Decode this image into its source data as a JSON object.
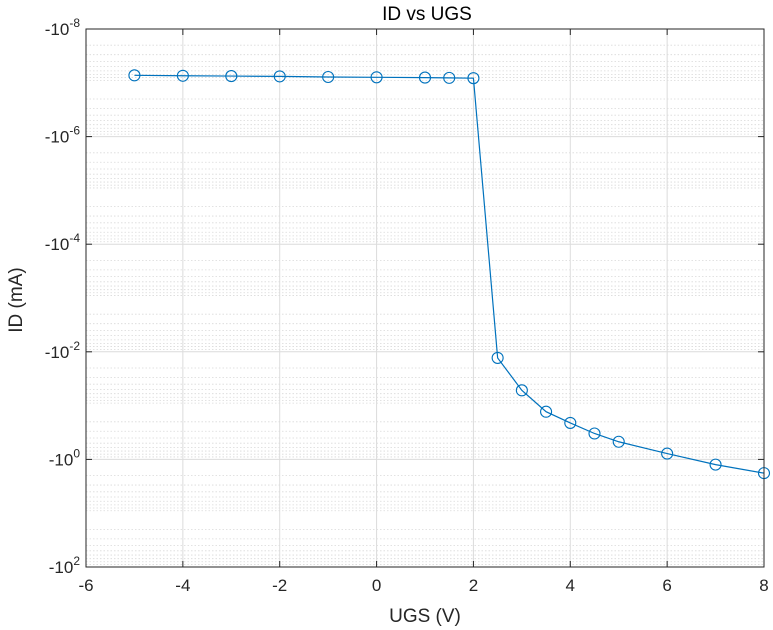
{
  "chart_data": {
    "type": "line",
    "title": "ID vs UGS",
    "xlabel": "UGS (V)",
    "ylabel": "ID (mA)",
    "xlim": [
      -6,
      8
    ],
    "ylim_exponent": [
      -8,
      2
    ],
    "y_scale": "log (negative values, magnitude increases downward)",
    "x_ticks": [
      "-6",
      "-4",
      "-2",
      "0",
      "2",
      "4",
      "6",
      "8"
    ],
    "x_tick_values": [
      -6,
      -4,
      -2,
      0,
      2,
      4,
      6,
      8
    ],
    "y_ticks": [
      {
        "base": "-10",
        "exp": "-8",
        "value": -8
      },
      {
        "base": "-10",
        "exp": "-6",
        "value": -6
      },
      {
        "base": "-10",
        "exp": "-4",
        "value": -4
      },
      {
        "base": "-10",
        "exp": "-2",
        "value": -2
      },
      {
        "base": "-10",
        "exp": "0",
        "value": 0
      },
      {
        "base": "-10",
        "exp": "2",
        "value": 2
      }
    ],
    "grid": true,
    "minor_grid": true,
    "series": [
      {
        "marker": "circle",
        "color": "#0072BD",
        "x": [
          -5,
          -4,
          -3,
          -2,
          -1,
          0,
          1,
          1.5,
          2,
          2.5,
          3,
          3.5,
          4,
          4.5,
          5,
          6,
          7,
          8
        ],
        "y": [
          -7.26e-08,
          -7.4e-08,
          -7.5e-08,
          -7.6e-08,
          -7.8e-08,
          -7.9e-08,
          -8e-08,
          -8.1e-08,
          -8.2e-08,
          -0.013,
          -0.052,
          -0.13,
          -0.21,
          -0.33,
          -0.47,
          -0.78,
          -1.25,
          -1.8
        ]
      }
    ]
  }
}
